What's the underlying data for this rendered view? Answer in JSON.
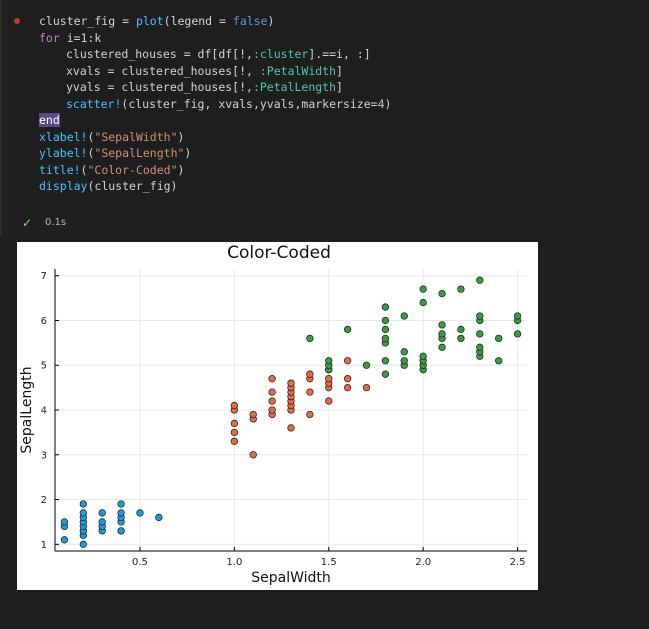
{
  "code_lines": [
    {
      "parts": [
        {
          "t": "cluster_fig = ",
          "c": ""
        },
        {
          "t": "plot",
          "c": "fn"
        },
        {
          "t": "(legend = ",
          "c": ""
        },
        {
          "t": "false",
          "c": "bool"
        },
        {
          "t": ")",
          "c": ""
        }
      ]
    },
    {
      "parts": [
        {
          "t": "for",
          "c": "kw"
        },
        {
          "t": " i=1:k",
          "c": ""
        }
      ]
    },
    {
      "indent": true,
      "parts": [
        {
          "t": "clustered_houses = df[df[!,",
          "c": ""
        },
        {
          "t": ":cluster",
          "c": "sym"
        },
        {
          "t": "].==i, :]",
          "c": ""
        }
      ]
    },
    {
      "indent": true,
      "parts": [
        {
          "t": "xvals = clustered_houses[!, ",
          "c": ""
        },
        {
          "t": ":PetalWidth",
          "c": "sym"
        },
        {
          "t": "]",
          "c": ""
        }
      ]
    },
    {
      "indent": true,
      "parts": [
        {
          "t": "yvals = clustered_houses[!,",
          "c": ""
        },
        {
          "t": ":PetalLength",
          "c": "sym"
        },
        {
          "t": "]",
          "c": ""
        }
      ]
    },
    {
      "indent": true,
      "parts": [
        {
          "t": "scatter!",
          "c": "fn"
        },
        {
          "t": "(cluster_fig, xvals,yvals,markersize=",
          "c": ""
        },
        {
          "t": "4",
          "c": "num"
        },
        {
          "t": ")",
          "c": ""
        }
      ]
    },
    {
      "parts": [
        {
          "t": "end",
          "c": "kw hl"
        }
      ]
    },
    {
      "parts": [
        {
          "t": "xlabel!",
          "c": "fn"
        },
        {
          "t": "(",
          "c": ""
        },
        {
          "t": "\"SepalWidth\"",
          "c": "str"
        },
        {
          "t": ")",
          "c": ""
        }
      ]
    },
    {
      "parts": [
        {
          "t": "ylabel!",
          "c": "fn"
        },
        {
          "t": "(",
          "c": ""
        },
        {
          "t": "\"SepalLength\"",
          "c": "str"
        },
        {
          "t": ")",
          "c": ""
        }
      ]
    },
    {
      "parts": [
        {
          "t": "title!",
          "c": "fn"
        },
        {
          "t": "(",
          "c": ""
        },
        {
          "t": "\"Color-Coded\"",
          "c": "str"
        },
        {
          "t": ")",
          "c": ""
        }
      ]
    },
    {
      "parts": [
        {
          "t": "display",
          "c": "fn"
        },
        {
          "t": "(cluster_fig)",
          "c": ""
        }
      ]
    }
  ],
  "status": {
    "check_icon": "check-icon",
    "time": "0.1s"
  },
  "chart_data": {
    "type": "scatter",
    "title": "Color-Coded",
    "xlabel": "SepalWidth",
    "ylabel": "SepalLength",
    "xlim": [
      0.05,
      2.55
    ],
    "ylim": [
      0.85,
      7.15
    ],
    "xticks": [
      0.5,
      1.0,
      1.5,
      2.0,
      2.5
    ],
    "xtick_labels": [
      "0.5",
      "1.0",
      "1.5",
      "2.0",
      "2.5"
    ],
    "yticks": [
      1,
      2,
      3,
      4,
      5,
      6,
      7
    ],
    "ytick_labels": [
      "1",
      "2",
      "3",
      "4",
      "5",
      "6",
      "7"
    ],
    "grid": true,
    "legend": false,
    "series": [
      {
        "color": "#1f9bdc",
        "points": [
          [
            0.1,
            1.4
          ],
          [
            0.1,
            1.5
          ],
          [
            0.1,
            1.1
          ],
          [
            0.2,
            1.0
          ],
          [
            0.2,
            1.2
          ],
          [
            0.2,
            1.3
          ],
          [
            0.2,
            1.4
          ],
          [
            0.2,
            1.5
          ],
          [
            0.2,
            1.6
          ],
          [
            0.2,
            1.7
          ],
          [
            0.2,
            1.9
          ],
          [
            0.3,
            1.3
          ],
          [
            0.3,
            1.4
          ],
          [
            0.3,
            1.5
          ],
          [
            0.3,
            1.7
          ],
          [
            0.4,
            1.3
          ],
          [
            0.4,
            1.5
          ],
          [
            0.4,
            1.6
          ],
          [
            0.4,
            1.7
          ],
          [
            0.4,
            1.9
          ],
          [
            0.5,
            1.7
          ],
          [
            0.6,
            1.6
          ]
        ]
      },
      {
        "color": "#e26a45",
        "points": [
          [
            1.0,
            3.3
          ],
          [
            1.0,
            3.5
          ],
          [
            1.0,
            3.7
          ],
          [
            1.0,
            4.0
          ],
          [
            1.0,
            4.1
          ],
          [
            1.1,
            3.0
          ],
          [
            1.1,
            3.8
          ],
          [
            1.1,
            3.9
          ],
          [
            1.2,
            3.9
          ],
          [
            1.2,
            4.0
          ],
          [
            1.2,
            4.2
          ],
          [
            1.2,
            4.4
          ],
          [
            1.2,
            4.7
          ],
          [
            1.3,
            3.6
          ],
          [
            1.3,
            4.0
          ],
          [
            1.3,
            4.1
          ],
          [
            1.3,
            4.2
          ],
          [
            1.3,
            4.3
          ],
          [
            1.3,
            4.4
          ],
          [
            1.3,
            4.5
          ],
          [
            1.3,
            4.6
          ],
          [
            1.4,
            3.9
          ],
          [
            1.4,
            4.4
          ],
          [
            1.4,
            4.7
          ],
          [
            1.4,
            4.8
          ],
          [
            1.5,
            4.2
          ],
          [
            1.5,
            4.5
          ],
          [
            1.5,
            4.6
          ],
          [
            1.5,
            4.7
          ],
          [
            1.5,
            4.9
          ],
          [
            1.6,
            4.5
          ],
          [
            1.6,
            4.7
          ],
          [
            1.6,
            5.1
          ],
          [
            1.7,
            4.5
          ]
        ]
      },
      {
        "color": "#3a9b45",
        "points": [
          [
            1.4,
            5.6
          ],
          [
            1.5,
            4.9
          ],
          [
            1.5,
            5.0
          ],
          [
            1.5,
            5.1
          ],
          [
            1.6,
            5.8
          ],
          [
            1.7,
            5.0
          ],
          [
            1.8,
            4.8
          ],
          [
            1.8,
            5.1
          ],
          [
            1.8,
            5.5
          ],
          [
            1.8,
            5.6
          ],
          [
            1.8,
            5.8
          ],
          [
            1.8,
            6.0
          ],
          [
            1.8,
            6.3
          ],
          [
            1.9,
            5.0
          ],
          [
            1.9,
            5.1
          ],
          [
            1.9,
            5.3
          ],
          [
            1.9,
            6.1
          ],
          [
            2.0,
            4.9
          ],
          [
            2.0,
            5.0
          ],
          [
            2.0,
            5.1
          ],
          [
            2.0,
            5.2
          ],
          [
            2.0,
            6.4
          ],
          [
            2.0,
            6.7
          ],
          [
            2.1,
            5.4
          ],
          [
            2.1,
            5.6
          ],
          [
            2.1,
            5.7
          ],
          [
            2.1,
            5.9
          ],
          [
            2.1,
            6.6
          ],
          [
            2.2,
            5.6
          ],
          [
            2.2,
            5.8
          ],
          [
            2.2,
            6.7
          ],
          [
            2.3,
            5.2
          ],
          [
            2.3,
            5.3
          ],
          [
            2.3,
            5.4
          ],
          [
            2.3,
            5.7
          ],
          [
            2.3,
            6.0
          ],
          [
            2.3,
            6.1
          ],
          [
            2.3,
            6.9
          ],
          [
            2.4,
            5.1
          ],
          [
            2.4,
            5.6
          ],
          [
            2.5,
            5.7
          ],
          [
            2.5,
            6.0
          ],
          [
            2.5,
            6.1
          ]
        ]
      }
    ]
  }
}
